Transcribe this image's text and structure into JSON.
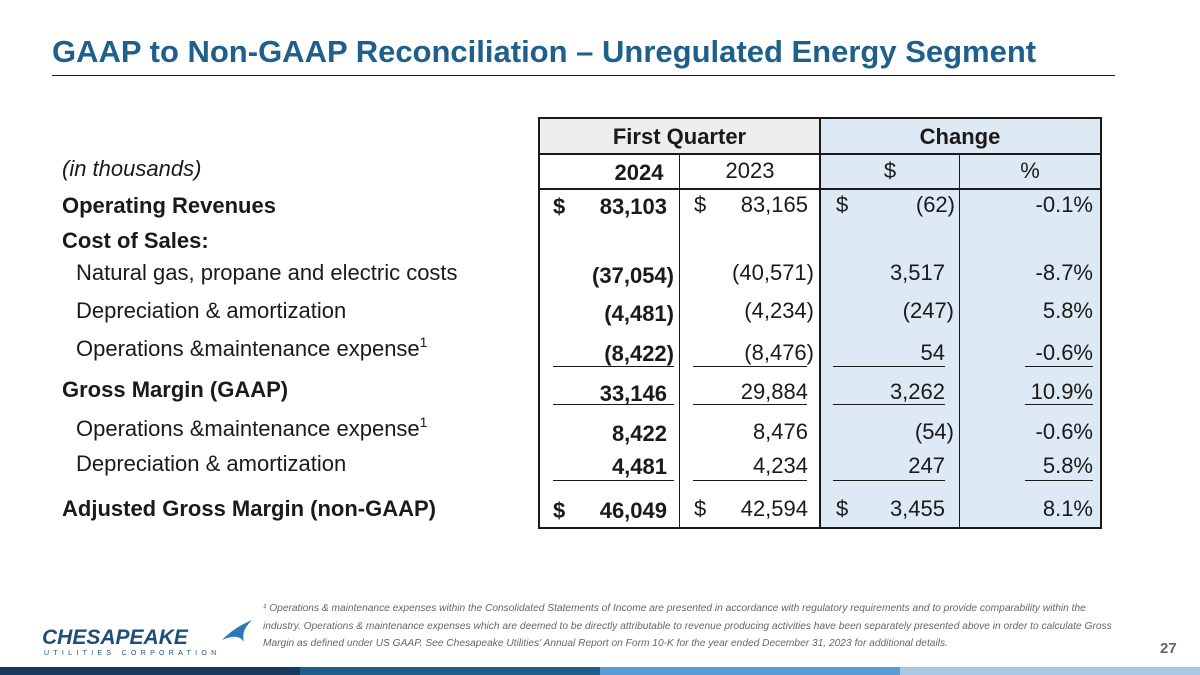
{
  "title": "GAAP to Non-GAAP Reconciliation – Unregulated Energy Segment",
  "table": {
    "group_headers": {
      "first_quarter": "First Quarter",
      "change": "Change"
    },
    "col_headers": {
      "y2024": "2024",
      "y2023": "2023",
      "dollar": "$",
      "pct": "%"
    },
    "units_label": "(in thousands)",
    "rows": {
      "operating_revenues": {
        "label": "Operating Revenues",
        "y2024_dollar": "$",
        "y2024": "83,103",
        "y2023_dollar": "$",
        "y2023": "83,165",
        "chg_dollar": "$",
        "chg": "(62)",
        "pct": "-0.1%"
      },
      "cost_of_sales": {
        "label": "Cost of Sales:"
      },
      "natural_gas": {
        "label": "Natural gas, propane and electric costs",
        "y2024": "(37,054)",
        "y2023": "(40,571)",
        "chg": "3,517",
        "pct": "-8.7%"
      },
      "depreciation1": {
        "label": "Depreciation & amortization",
        "y2024": "(4,481)",
        "y2023": "(4,234)",
        "chg": "(247)",
        "pct": "5.8%"
      },
      "om_expense1": {
        "label": "Operations &maintenance expense",
        "sup": "1",
        "y2024": "(8,422)",
        "y2023": "(8,476)",
        "chg": "54",
        "pct": "-0.6%"
      },
      "gross_margin": {
        "label": "Gross Margin (GAAP)",
        "y2024": "33,146",
        "y2023": "29,884",
        "chg": "3,262",
        "pct": "10.9%"
      },
      "om_expense2": {
        "label": "Operations &maintenance expense",
        "sup": "1",
        "y2024": "8,422",
        "y2023": "8,476",
        "chg": "(54)",
        "pct": "-0.6%"
      },
      "depreciation2": {
        "label": "Depreciation & amortization",
        "y2024": "4,481",
        "y2023": "4,234",
        "chg": "247",
        "pct": "5.8%"
      },
      "adjusted_gross_margin": {
        "label": "Adjusted Gross Margin (non-GAAP)",
        "y2024_dollar": "$",
        "y2024": "46,049",
        "y2023_dollar": "$",
        "y2023": "42,594",
        "chg_dollar": "$",
        "chg": "3,455",
        "pct": "8.1%"
      }
    }
  },
  "footnote": "¹ Operations & maintenance expenses within the Consolidated Statements of Income are presented in accordance with regulatory requirements and to provide comparability within the industry. Operations & maintenance expenses which are deemed to be directly attributable to revenue producing activities have been separately presented above in order to calculate Gross Margin as defined under US GAAP. See Chesapeake Utilities' Annual Report on Form 10-K for the year ended December 31, 2023 for additional details.",
  "logo": {
    "name": "CHESAPEAKE",
    "sub": "UTILITIES CORPORATION"
  },
  "page_number": "27",
  "colors": {
    "title": "#1f5f8b",
    "change_bg": "#dde9f5",
    "header_bg": "#eeeeee",
    "logo": "#1f4e79"
  },
  "icons": {
    "logo_mark": "bird-swoosh-icon"
  }
}
